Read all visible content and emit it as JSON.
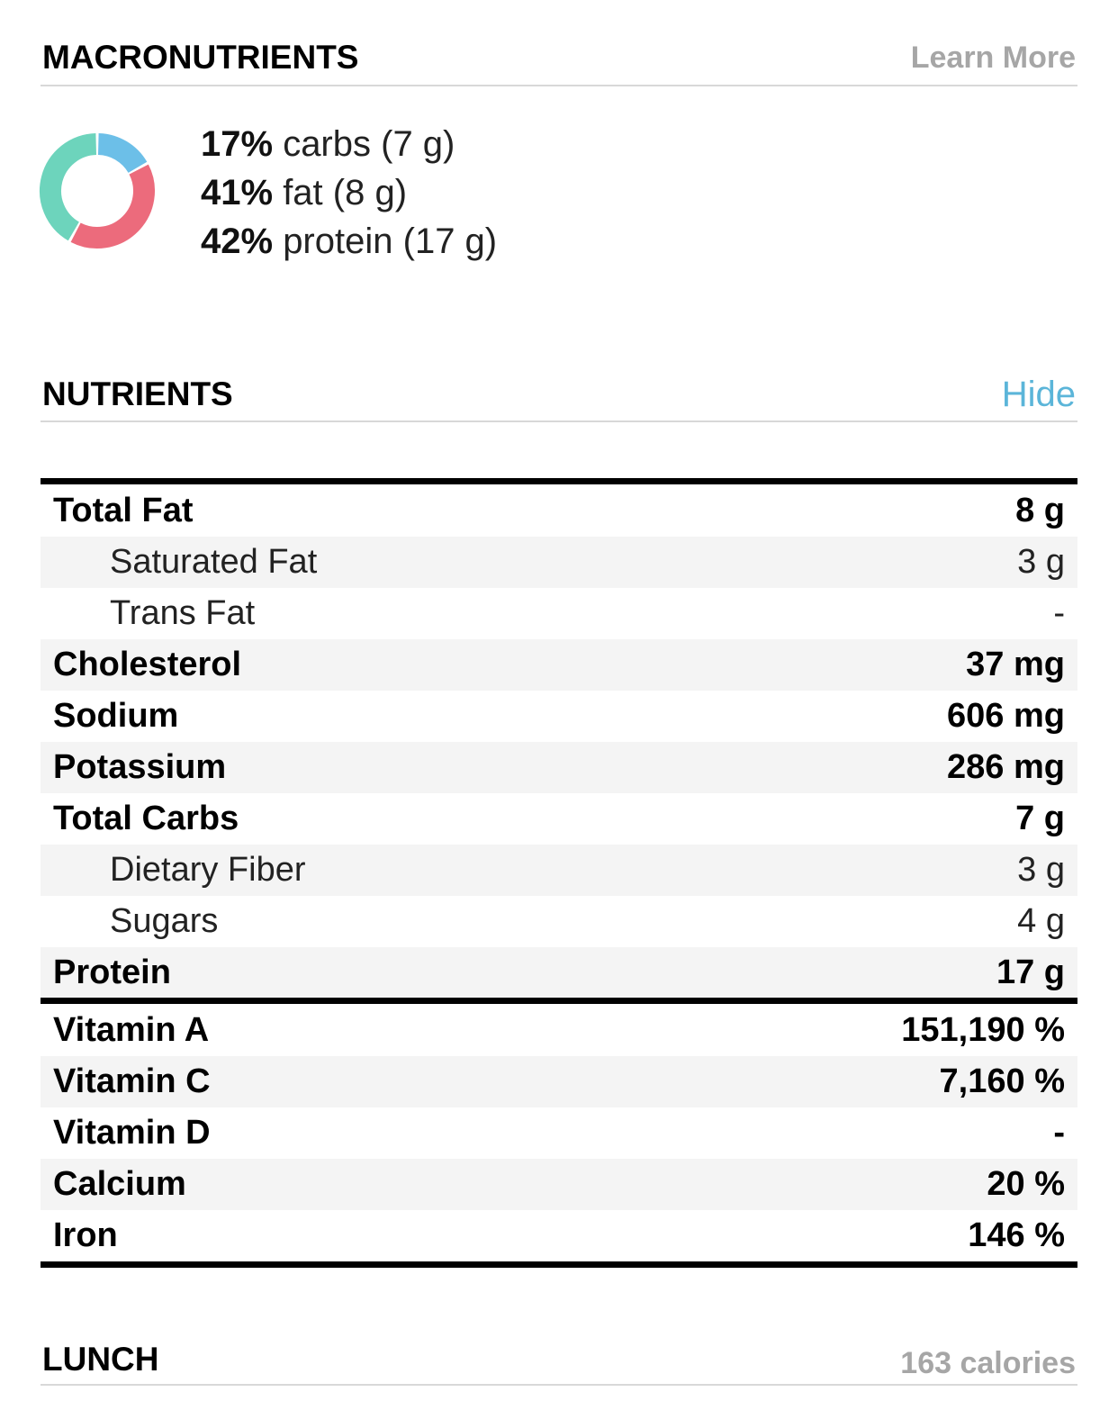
{
  "macronutrients": {
    "title": "MACRONUTRIENTS",
    "link": "Learn More",
    "chart": {
      "type": "donut",
      "categories": [
        "carbs",
        "fat",
        "protein"
      ],
      "values": [
        17,
        41,
        42
      ],
      "value_labels": [
        "17%",
        "41%",
        "42%"
      ],
      "amounts": [
        "(7 g)",
        "(8 g)",
        "(17 g)"
      ],
      "colors": [
        "#6cbfe8",
        "#ec6b7c",
        "#6dd4bc"
      ]
    }
  },
  "nutrients": {
    "title": "NUTRIENTS",
    "link": "Hide",
    "groups": [
      [
        {
          "label": "Total Fat",
          "amount": "8 g"
        },
        {
          "label": "Saturated Fat",
          "amount": "3 g",
          "indent": true
        },
        {
          "label": "Trans Fat",
          "amount": "-",
          "indent": true
        },
        {
          "label": "Cholesterol",
          "amount": "37 mg"
        },
        {
          "label": "Sodium",
          "amount": "606 mg"
        },
        {
          "label": "Potassium",
          "amount": "286 mg"
        },
        {
          "label": "Total Carbs",
          "amount": "7 g"
        },
        {
          "label": "Dietary Fiber",
          "amount": "3 g",
          "indent": true
        },
        {
          "label": "Sugars",
          "amount": "4 g",
          "indent": true
        },
        {
          "label": "Protein",
          "amount": "17 g"
        }
      ],
      [
        {
          "label": "Vitamin A",
          "amount": "151,190 %"
        },
        {
          "label": "Vitamin C",
          "amount": "7,160 %"
        },
        {
          "label": "Vitamin D",
          "amount": "-"
        },
        {
          "label": "Calcium",
          "amount": "20 %"
        },
        {
          "label": "Iron",
          "amount": "146 %"
        }
      ]
    ]
  },
  "lunch": {
    "title": "LUNCH",
    "calories": "163 calories"
  }
}
